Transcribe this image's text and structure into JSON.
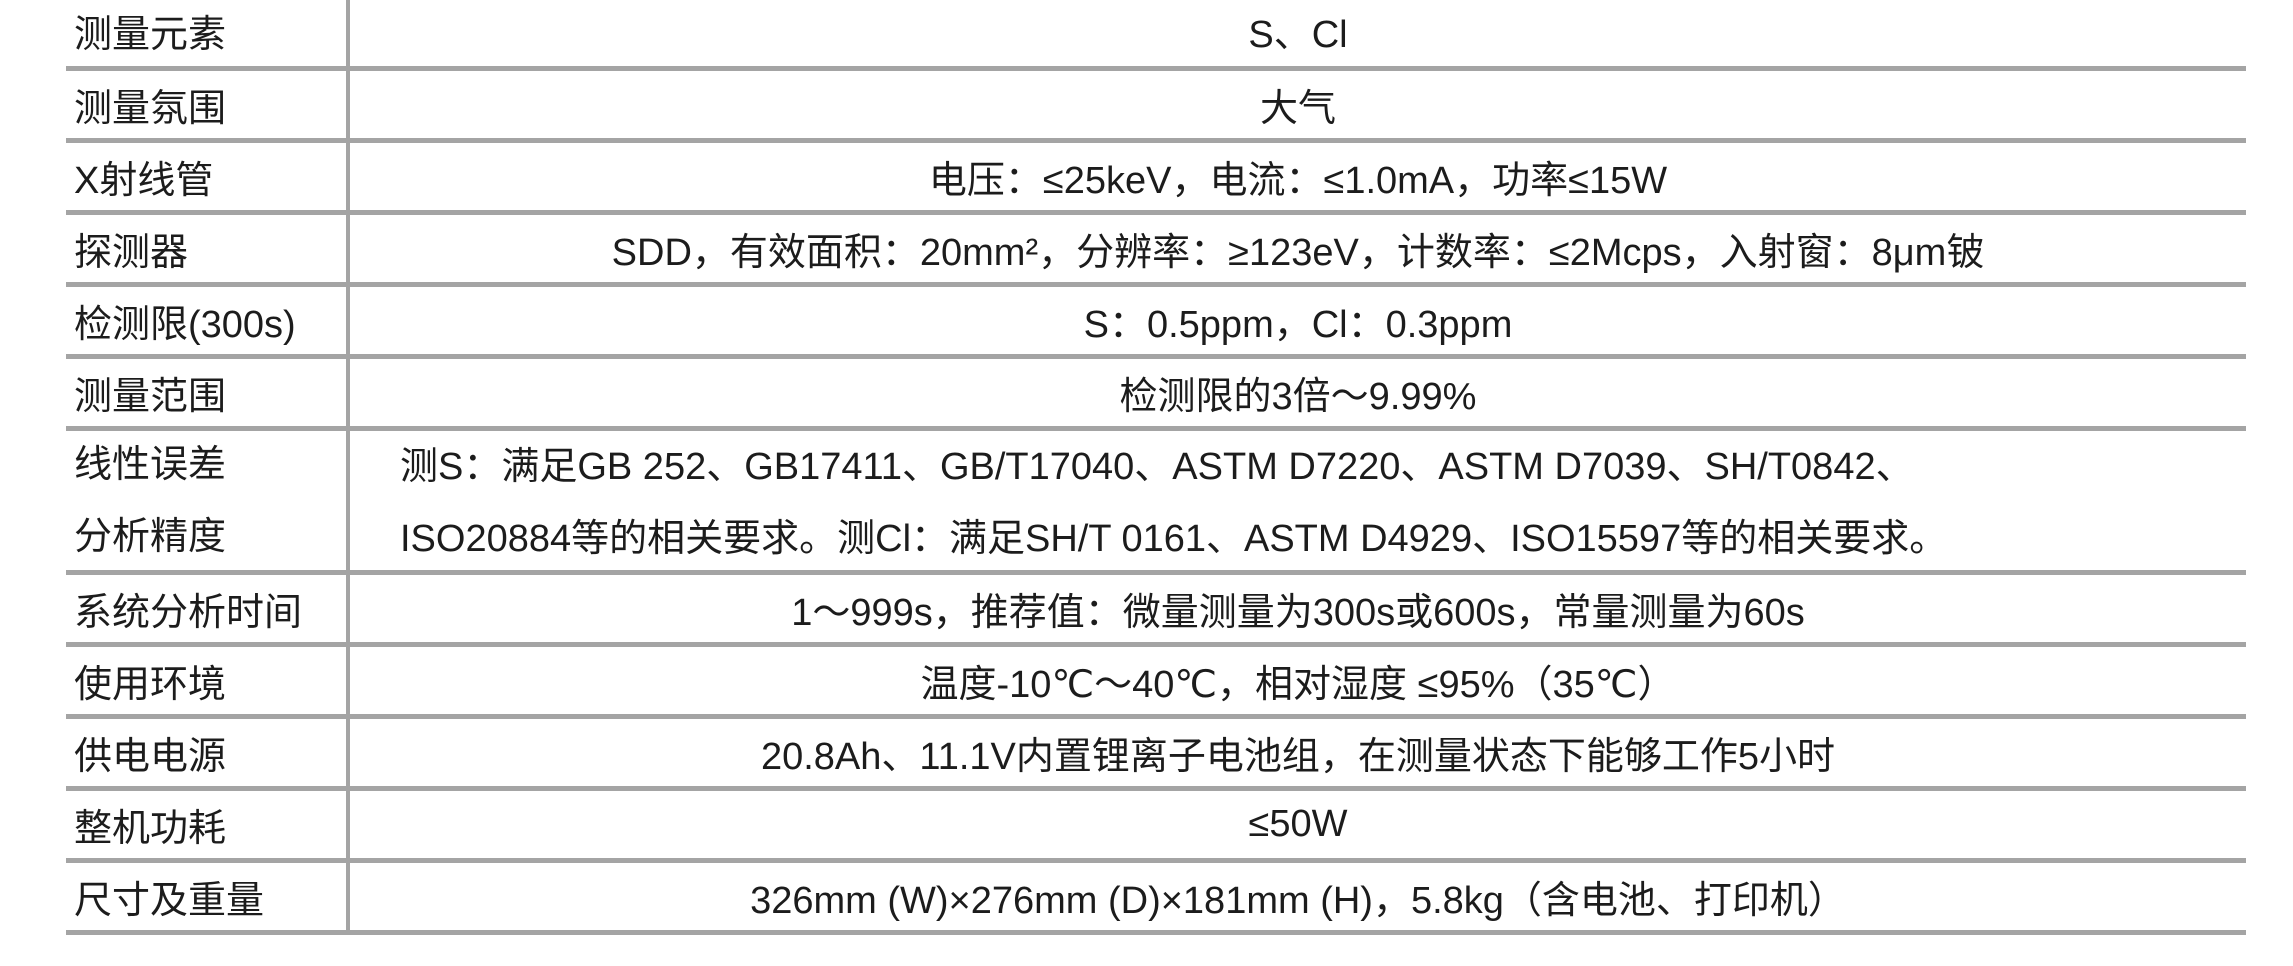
{
  "rows": [
    {
      "label": "测量元素",
      "value": "S、Cl"
    },
    {
      "label": "测量氛围",
      "value": "大气"
    },
    {
      "label": "X射线管",
      "value": "电压：≤25keV，电流：≤1.0mA，功率≤15W"
    },
    {
      "label": "探测器",
      "value": "SDD，有效面积：20mm²，分辨率：≥123eV，计数率：≤2Mcps，入射窗：8μm铍"
    },
    {
      "label": "检测限(300s)",
      "value": "S：0.5ppm，Cl：0.3ppm"
    },
    {
      "label": "测量范围",
      "value": "检测限的3倍～9.99%"
    },
    {
      "label_lines": [
        "线性误差",
        "分析精度"
      ],
      "value_lines": [
        "测S：满足GB 252、GB17411、GB/T17040、ASTM D7220、ASTM D7039、SH/T0842、",
        "ISO20884等的相关要求。测Cl：满足SH/T 0161、ASTM D4929、ISO15597等的相关要求。"
      ]
    },
    {
      "label": "系统分析时间",
      "value": "1～999s，推荐值：微量测量为300s或600s，常量测量为60s"
    },
    {
      "label": "使用环境",
      "value": "温度-10℃～40℃，相对湿度 ≤95%（35℃）"
    },
    {
      "label": "供电电源",
      "value": "20.8Ah、11.1V内置锂离子电池组，在测量状态下能够工作5小时"
    },
    {
      "label": "整机功耗",
      "value": "≤50W"
    },
    {
      "label": "尺寸及重量",
      "value": "326mm (W)×276mm (D)×181mm (H)，5.8kg（含电池、打印机）"
    }
  ]
}
